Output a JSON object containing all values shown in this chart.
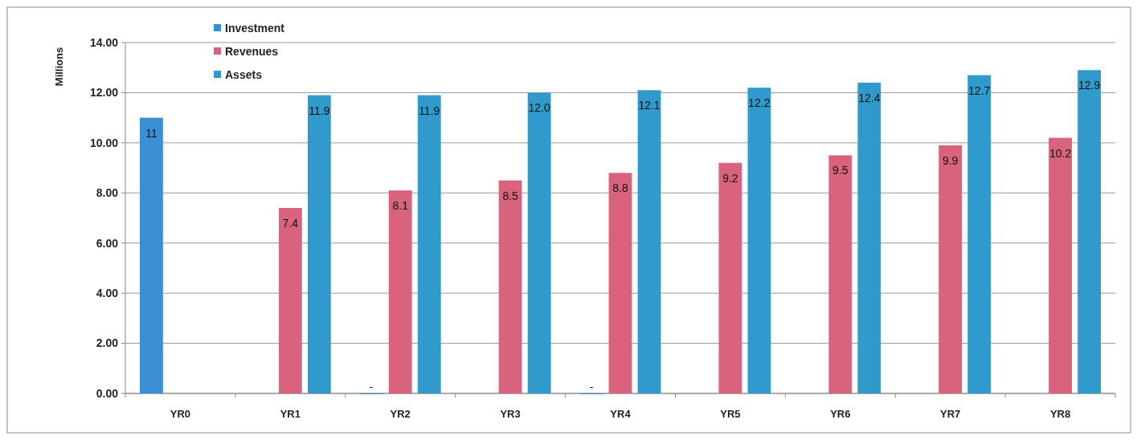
{
  "chart_data": {
    "type": "bar",
    "ylabel": "Millions",
    "categories": [
      "YR0",
      "YR1",
      "YR2",
      "YR3",
      "YR4",
      "YR5",
      "YR6",
      "YR7",
      "YR8"
    ],
    "series": [
      {
        "name": "Investment",
        "color": "#3a8fd3",
        "values": [
          11,
          null,
          0,
          null,
          0,
          null,
          null,
          null,
          null
        ],
        "value_labels": [
          "11",
          null,
          "-",
          null,
          "-",
          null,
          null,
          null,
          null
        ]
      },
      {
        "name": "Revenues",
        "color": "#d9637c",
        "values": [
          null,
          7.4,
          8.1,
          8.5,
          8.8,
          9.2,
          9.5,
          9.9,
          10.2
        ],
        "value_labels": [
          null,
          "7.4",
          "8.1",
          "8.5",
          "8.8",
          "9.2",
          "9.5",
          "9.9",
          "10.2"
        ]
      },
      {
        "name": "Assets",
        "color": "#2f9acb",
        "values": [
          null,
          11.9,
          11.9,
          12.0,
          12.1,
          12.2,
          12.4,
          12.7,
          12.9
        ],
        "value_labels": [
          null,
          "11.9",
          "11.9",
          "12.0",
          "12.1",
          "12.2",
          "12.4",
          "12.7",
          "12.9"
        ]
      }
    ],
    "ylim": [
      0,
      14
    ],
    "yticks": [
      {
        "value": 0,
        "label": "0.00"
      },
      {
        "value": 2,
        "label": "2.00"
      },
      {
        "value": 4,
        "label": "4.00"
      },
      {
        "value": 6,
        "label": "6.00"
      },
      {
        "value": 8,
        "label": "8.00"
      },
      {
        "value": 10,
        "label": "10.00"
      },
      {
        "value": 12,
        "label": "12.00"
      },
      {
        "value": 14,
        "label": "14.00"
      }
    ],
    "grid": "y",
    "legend": "top left"
  }
}
